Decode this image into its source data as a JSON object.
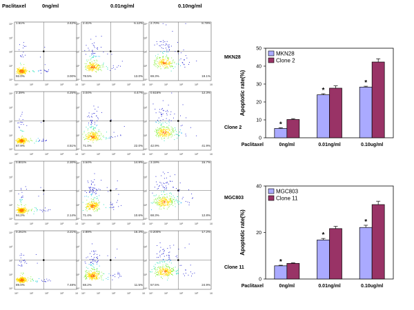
{
  "figure": {
    "column_header_label": "Paclitaxel",
    "column_headers": [
      "0ng/ml",
      "0.01ng/ml",
      "0.10ng/ml"
    ],
    "row_labels": [
      "MKN28",
      "Clone 2",
      "MGC803",
      "Clone 11"
    ],
    "axis_ticks_x": [
      "10⁰",
      "10¹",
      "10²",
      "10³",
      "10⁴"
    ],
    "axis_ticks_y": [
      "10⁴",
      "10³",
      "10²",
      "10¹",
      "10⁰"
    ],
    "quadrant_values": [
      [
        [
          "1.61%",
          "3.42%",
          "92.0%",
          "3.00%"
        ],
        [
          "2.41%",
          "6.12%",
          "78.5%",
          "13.0%"
        ],
        [
          "2.70%",
          "8.79%",
          "69.3%",
          "19.1%"
        ]
      ],
      [
        [
          "2.39%",
          "4.25%",
          "87.9%",
          "4.51%"
        ],
        [
          "3.04%",
          "4.47%",
          "71.0%",
          "22.0%"
        ],
        [
          "0.616%",
          "12.3%",
          "42.9%",
          "41.9%"
        ]
      ],
      [
        [
          "0.801%",
          "2.30%",
          "94.2%",
          "2.14%"
        ],
        [
          "3.54%",
          "14.9%",
          "71.4%",
          "10.6%"
        ],
        [
          "3.19%",
          "15.7%",
          "68.3%",
          "12.8%"
        ]
      ],
      [
        [
          "0.261%",
          "3.21%",
          "89.0%",
          "7.48%"
        ],
        [
          "2.89%",
          "16.3%",
          "68.2%",
          "11.5%"
        ],
        [
          "0.200%",
          "17.2%",
          "57.5%",
          "24.9%"
        ]
      ]
    ]
  },
  "chart_data": [
    {
      "type": "bar",
      "ylabel": "Apoptotic rate(%)",
      "x_prefix": "Paclitaxel",
      "categories": [
        "0ng/ml",
        "0.01ng/ml",
        "0.10ug/ml"
      ],
      "ylim": [
        0,
        50
      ],
      "yticks": [
        "0",
        "10",
        "20",
        "30",
        "40",
        "50"
      ],
      "legend_position": "top-left",
      "series": [
        {
          "name": "MKN28",
          "color": "#aaaaff",
          "values": [
            5.2,
            24.0,
            28.3
          ],
          "errors": [
            0.4,
            0.6,
            0.5
          ]
        },
        {
          "name": "Clone 2",
          "color": "#993366",
          "values": [
            10.2,
            27.7,
            42.3
          ],
          "errors": [
            0.5,
            1.3,
            1.8
          ]
        }
      ],
      "significance": [
        "*",
        "*",
        "*"
      ]
    },
    {
      "type": "bar",
      "ylabel": "Apoptotic rate(%)",
      "x_prefix": "Paclitaxel",
      "categories": [
        "0ng/ml",
        "0.01ng/ml",
        "0.10ug/ml"
      ],
      "ylim": [
        0,
        50
      ],
      "yticks": [
        "0",
        "20",
        "40"
      ],
      "legend_position": "top-left",
      "series": [
        {
          "name": "MGC803",
          "color": "#aaaaff",
          "values": [
            7.1,
            21.0,
            27.7
          ],
          "errors": [
            0.3,
            0.8,
            1.2
          ]
        },
        {
          "name": "Clone 11",
          "color": "#993366",
          "values": [
            8.4,
            27.1,
            40.0
          ],
          "errors": [
            0.3,
            1.2,
            1.8
          ]
        }
      ],
      "significance": [
        "*",
        "*",
        "*"
      ]
    }
  ]
}
